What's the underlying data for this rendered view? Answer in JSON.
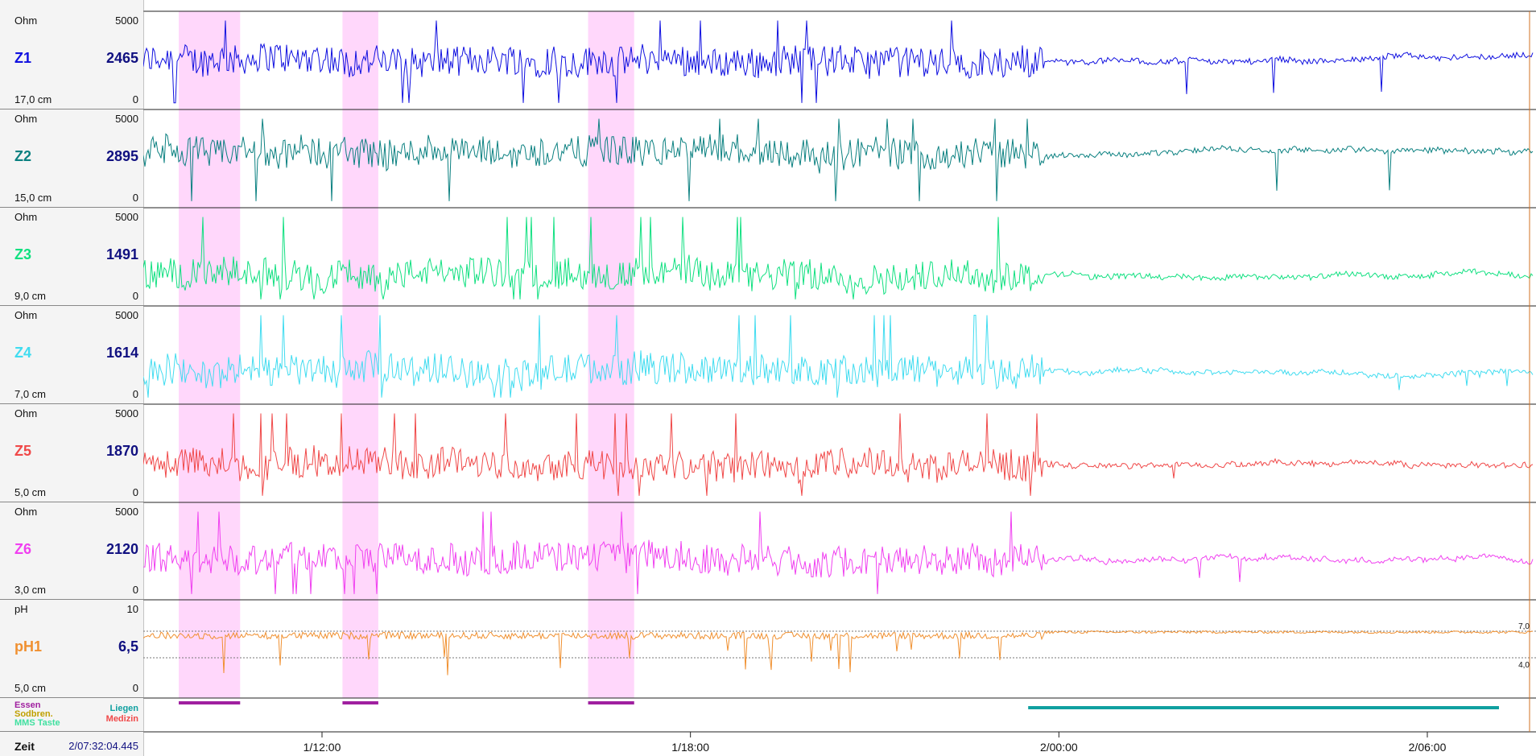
{
  "channels": [
    {
      "name": "Z1",
      "unit": "Ohm",
      "max": "5000",
      "min": "0",
      "value": "2465",
      "position": "17,0 cm",
      "color": "#1010e0"
    },
    {
      "name": "Z2",
      "unit": "Ohm",
      "max": "5000",
      "min": "0",
      "value": "2895",
      "position": "15,0 cm",
      "color": "#0a8080"
    },
    {
      "name": "Z3",
      "unit": "Ohm",
      "max": "5000",
      "min": "0",
      "value": "1491",
      "position": "9,0 cm",
      "color": "#10e080"
    },
    {
      "name": "Z4",
      "unit": "Ohm",
      "max": "5000",
      "min": "0",
      "value": "1614",
      "position": "7,0 cm",
      "color": "#40dcf0"
    },
    {
      "name": "Z5",
      "unit": "Ohm",
      "max": "5000",
      "min": "0",
      "value": "1870",
      "position": "5,0 cm",
      "color": "#f04848"
    },
    {
      "name": "Z6",
      "unit": "Ohm",
      "max": "5000",
      "min": "0",
      "value": "2120",
      "position": "3,0 cm",
      "color": "#f040f0"
    },
    {
      "name": "pH1",
      "unit": "pH",
      "max": "10",
      "min": "0",
      "value": "6,5",
      "position": "5,0 cm",
      "color": "#f09030"
    }
  ],
  "events": {
    "essen": "Essen",
    "sodbrennen": "Sodbren.",
    "mms": "MMS Taste",
    "liegen": "Liegen",
    "medizin": "Medizin",
    "colors": {
      "essen": "#a020a0",
      "sodbrennen": "#c0a000",
      "mms": "#40e0a0",
      "liegen": "#10a0a0",
      "medizin": "#f04848"
    }
  },
  "zeit": {
    "label": "Zeit",
    "value": "2/07:32:04.445"
  },
  "chart_data": {
    "type": "line",
    "x_axis": {
      "ticks": [
        "1/12:00",
        "1/18:00",
        "2/00:00",
        "2/06:00"
      ]
    },
    "ph_refs": {
      "upper": "7,0",
      "lower": "4,0"
    },
    "meal_periods": [
      [
        "1/09:40",
        "1/10:40"
      ],
      [
        "1/12:20",
        "1/12:55"
      ],
      [
        "1/16:20",
        "1/17:05"
      ]
    ],
    "supine_period": [
      "1/23:30",
      "2/07:10"
    ],
    "series": [
      {
        "name": "Z1",
        "baseline": 2465,
        "ylim": [
          0,
          5000
        ]
      },
      {
        "name": "Z2",
        "baseline": 2895,
        "ylim": [
          0,
          5000
        ]
      },
      {
        "name": "Z3",
        "baseline": 1491,
        "ylim": [
          0,
          5000
        ]
      },
      {
        "name": "Z4",
        "baseline": 1614,
        "ylim": [
          0,
          5000
        ]
      },
      {
        "name": "Z5",
        "baseline": 1870,
        "ylim": [
          0,
          5000
        ]
      },
      {
        "name": "Z6",
        "baseline": 2120,
        "ylim": [
          0,
          5000
        ]
      },
      {
        "name": "pH1",
        "baseline": 6.5,
        "ylim": [
          0,
          10
        ]
      }
    ]
  }
}
